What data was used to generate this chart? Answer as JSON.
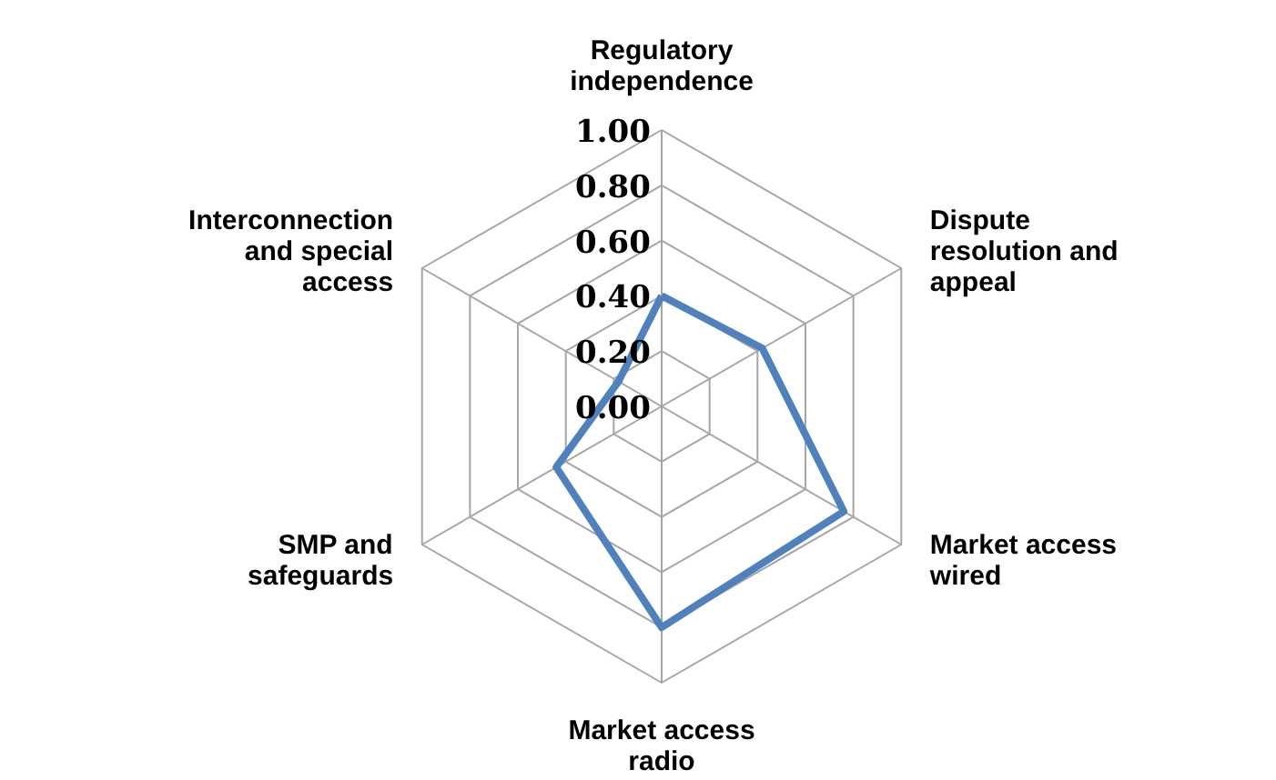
{
  "chart_data": {
    "type": "radar",
    "categories": [
      "Regulatory independence",
      "Dispute resolution and appeal",
      "Market access wired",
      "Market access radio",
      "SMP and safeguards",
      "Interconnection and special access"
    ],
    "series": [
      {
        "color": "#4f81bd",
        "values": [
          0.4,
          0.42,
          0.76,
          0.8,
          0.44,
          0.18
        ]
      }
    ],
    "ylim": [
      0,
      1
    ],
    "yticks": [
      {
        "value": 0,
        "label": "0.00"
      },
      {
        "value": 0.2,
        "label": "0.20"
      },
      {
        "value": 0.4,
        "label": "0.40"
      },
      {
        "value": 0.6,
        "label": "0.60"
      },
      {
        "value": 0.8,
        "label": "0.80"
      },
      {
        "value": 1,
        "label": "1.00"
      }
    ],
    "grid": true
  }
}
